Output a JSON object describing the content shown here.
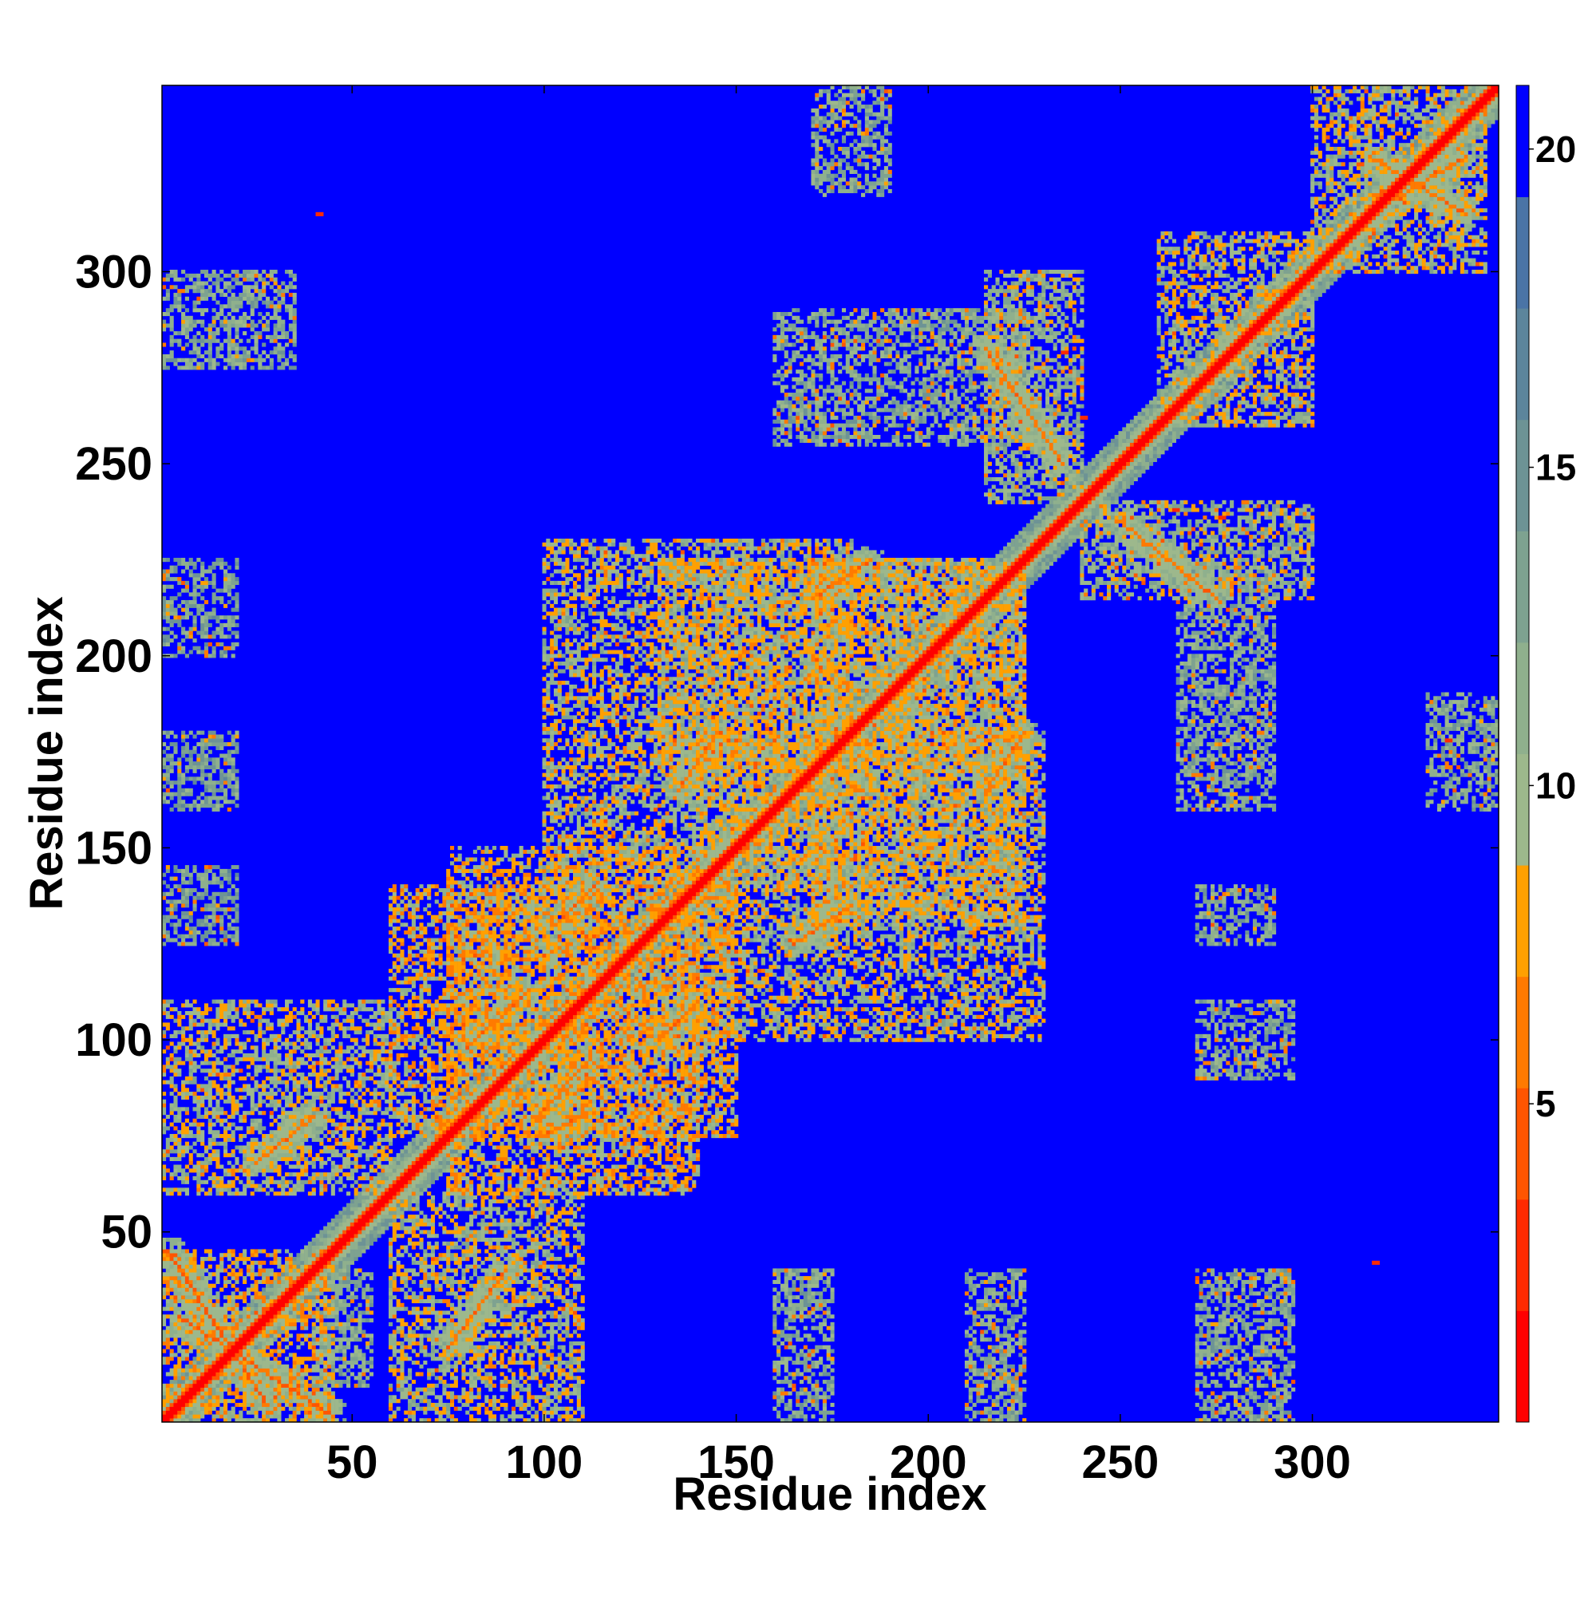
{
  "chart_data": {
    "type": "heatmap",
    "title": "",
    "xlabel": "Residue index",
    "ylabel": "Residue index",
    "n_residues": 348,
    "x_range": [
      1,
      348
    ],
    "y_range": [
      1,
      348
    ],
    "x_ticks": [
      50,
      100,
      150,
      200,
      250,
      300
    ],
    "y_ticks": [
      50,
      100,
      150,
      200,
      250,
      300
    ],
    "x_tick_labels": [
      "50",
      "100",
      "150",
      "200",
      "250",
      "300"
    ],
    "y_tick_labels": [
      "50",
      "100",
      "150",
      "200",
      "250",
      "300"
    ],
    "grid": false,
    "colorbar": {
      "range": [
        0,
        21
      ],
      "ticks": [
        5,
        10,
        15,
        20
      ],
      "tick_labels": [
        "5",
        "10",
        "15",
        "20"
      ],
      "colors": [
        "#ff0000",
        "#ff2a00",
        "#ff5500",
        "#ff7a00",
        "#ffa000",
        "#9db88c",
        "#8fb08d",
        "#7ea290",
        "#6d9395",
        "#5c859c",
        "#4a74a6",
        "#0000ff"
      ],
      "above_max_color": "#0000ff"
    },
    "background_color": "#0000ff",
    "diagonal_color": "#ff1a00",
    "contact_blocks": [
      {
        "x": [
          1,
          45
        ],
        "y": [
          1,
          45
        ],
        "value": 9
      },
      {
        "x": [
          1,
          60
        ],
        "y": [
          60,
          110
        ],
        "value": 10
      },
      {
        "x": [
          60,
          110
        ],
        "y": [
          1,
          60
        ],
        "value": 10
      },
      {
        "x": [
          75,
          140
        ],
        "y": [
          60,
          150
        ],
        "value": 9
      },
      {
        "x": [
          60,
          150
        ],
        "y": [
          75,
          140
        ],
        "value": 9
      },
      {
        "x": [
          100,
          180
        ],
        "y": [
          140,
          230
        ],
        "value": 10
      },
      {
        "x": [
          140,
          230
        ],
        "y": [
          100,
          180
        ],
        "value": 10
      },
      {
        "x": [
          170,
          225
        ],
        "y": [
          130,
          225
        ],
        "value": 10
      },
      {
        "x": [
          130,
          225
        ],
        "y": [
          170,
          225
        ],
        "value": 10
      },
      {
        "x": [
          260,
          300
        ],
        "y": [
          260,
          310
        ],
        "value": 10
      },
      {
        "x": [
          300,
          345
        ],
        "y": [
          300,
          348
        ],
        "value": 10
      },
      {
        "x": [
          1,
          35
        ],
        "y": [
          275,
          300
        ],
        "value": 12
      },
      {
        "x": [
          270,
          295
        ],
        "y": [
          1,
          40
        ],
        "value": 12
      },
      {
        "x": [
          270,
          295
        ],
        "y": [
          90,
          110
        ],
        "value": 12
      },
      {
        "x": [
          270,
          290
        ],
        "y": [
          125,
          140
        ],
        "value": 12
      },
      {
        "x": [
          265,
          290
        ],
        "y": [
          160,
          225
        ],
        "value": 12
      },
      {
        "x": [
          160,
          225
        ],
        "y": [
          255,
          290
        ],
        "value": 12
      },
      {
        "x": [
          40,
          55
        ],
        "y": [
          10,
          40
        ],
        "value": 12
      },
      {
        "x": [
          160,
          175
        ],
        "y": [
          1,
          40
        ],
        "value": 12
      },
      {
        "x": [
          210,
          225
        ],
        "y": [
          1,
          40
        ],
        "value": 12
      },
      {
        "x": [
          170,
          190
        ],
        "y": [
          320,
          348
        ],
        "value": 12
      },
      {
        "x": [
          330,
          348
        ],
        "y": [
          160,
          190
        ],
        "value": 12
      },
      {
        "x": [
          215,
          240
        ],
        "y": [
          240,
          300
        ],
        "value": 11
      },
      {
        "x": [
          240,
          300
        ],
        "y": [
          215,
          240
        ],
        "value": 11
      },
      {
        "x": [
          1,
          20
        ],
        "y": [
          200,
          225
        ],
        "value": 13
      },
      {
        "x": [
          1,
          20
        ],
        "y": [
          160,
          180
        ],
        "value": 13
      },
      {
        "x": [
          1,
          20
        ],
        "y": [
          125,
          145
        ],
        "value": 13
      }
    ],
    "contact_lines": [
      {
        "x": [
          5,
          45
        ],
        "y": [
          28,
          2
        ],
        "value": 4
      },
      {
        "x": [
          28,
          2
        ],
        "y": [
          5,
          45
        ],
        "value": 4
      },
      {
        "x": [
          25,
          40
        ],
        "y": [
          68,
          80
        ],
        "value": 5
      },
      {
        "x": [
          75,
          90
        ],
        "y": [
          20,
          40
        ],
        "value": 5
      },
      {
        "x": [
          80,
          95
        ],
        "y": [
          98,
          112
        ],
        "value": 5
      },
      {
        "x": [
          98,
          112
        ],
        "y": [
          80,
          95
        ],
        "value": 5
      },
      {
        "x": [
          100,
          110
        ],
        "y": [
          75,
          80
        ],
        "value": 5
      },
      {
        "x": [
          103,
          113
        ],
        "y": [
          130,
          140
        ],
        "value": 5
      },
      {
        "x": [
          130,
          140
        ],
        "y": [
          100,
          110
        ],
        "value": 5
      },
      {
        "x": [
          135,
          145
        ],
        "y": [
          165,
          180
        ],
        "value": 5
      },
      {
        "x": [
          165,
          180
        ],
        "y": [
          125,
          135
        ],
        "value": 5
      },
      {
        "x": [
          170,
          185
        ],
        "y": [
          215,
          225
        ],
        "value": 5
      },
      {
        "x": [
          215,
          225
        ],
        "y": [
          165,
          180
        ],
        "value": 5
      },
      {
        "x": [
          215,
          235
        ],
        "y": [
          280,
          250
        ],
        "value": 5
      },
      {
        "x": [
          250,
          275
        ],
        "y": [
          235,
          215
        ],
        "value": 5
      },
      {
        "x": [
          315,
          340
        ],
        "y": [
          330,
          315
        ],
        "value": 5
      },
      {
        "x": [
          315,
          340
        ],
        "y": [
          315,
          330
        ],
        "value": 5
      }
    ],
    "isolated_contacts": [
      {
        "x": 41,
        "y": 315,
        "value": 3
      },
      {
        "x": 235,
        "y": 279,
        "value": 3
      },
      {
        "x": 240,
        "y": 262,
        "value": 3
      },
      {
        "x": 264,
        "y": 238,
        "value": 3
      },
      {
        "x": 276,
        "y": 236,
        "value": 3
      },
      {
        "x": 316,
        "y": 42,
        "value": 3
      },
      {
        "x": 335,
        "y": 178,
        "value": 3
      }
    ]
  }
}
